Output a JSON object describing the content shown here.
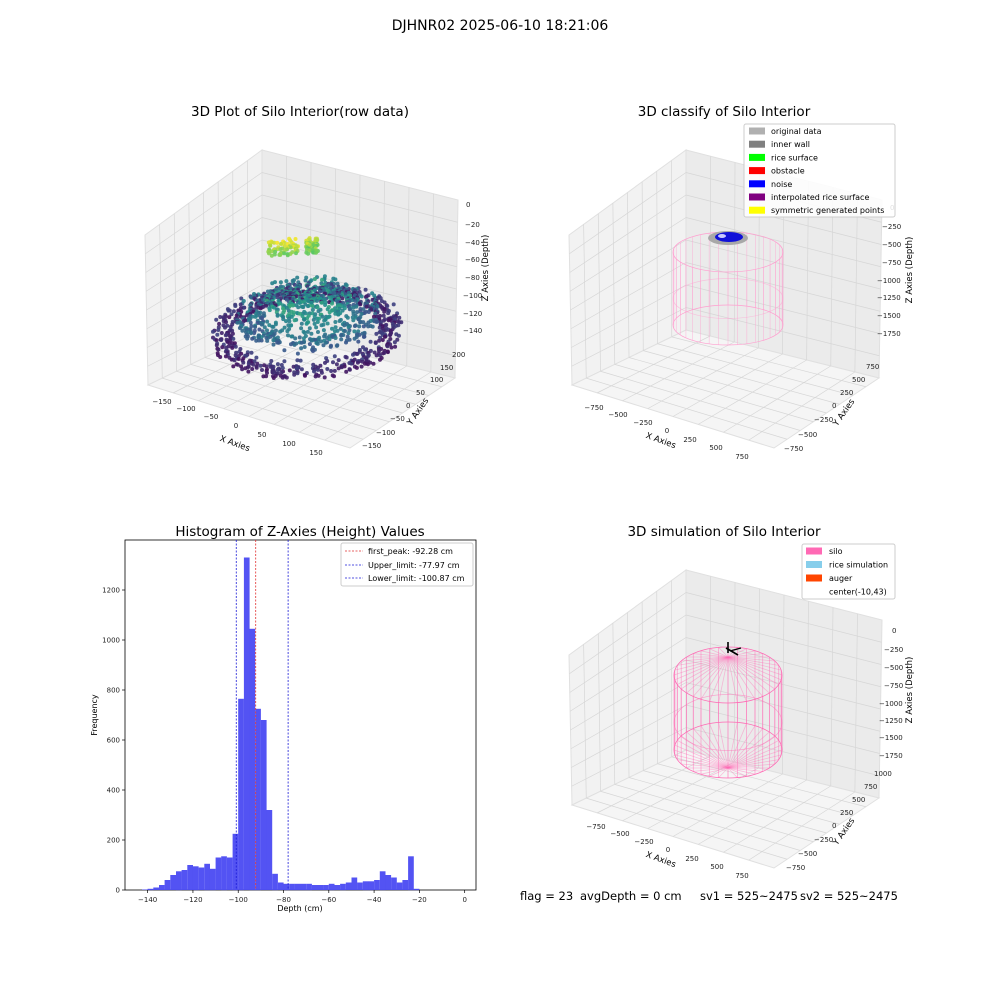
{
  "suptitle": "DJHNR02 2025-06-10 18:21:06",
  "footer": {
    "flag": "flag = 23",
    "avg_depth": "avgDepth = 0 cm",
    "sv1": "sv1 = 525~2475",
    "sv2": "sv2 = 525~2475"
  },
  "chart_data": [
    {
      "type": "scatter",
      "title": "3D Plot of Silo Interior(row data)",
      "xlabel": "X Axies",
      "ylabel": "Y Axies",
      "zlabel": "Z Axies (Depth)",
      "x_ticks": [
        "−150",
        "−100",
        "−50",
        "0",
        "50",
        "100",
        "150"
      ],
      "y_ticks": [
        "−150",
        "−100",
        "−50",
        "0",
        "50",
        "100",
        "150",
        "200"
      ],
      "z_ticks": [
        "0",
        "−20",
        "−40",
        "−60",
        "−80",
        "−100",
        "−120",
        "−140"
      ],
      "xlim": [
        -180,
        180
      ],
      "ylim": [
        -180,
        220
      ],
      "zlim": [
        -150,
        5
      ],
      "colormap": "viridis",
      "description_note": "dense point cloud; outer ring near depth -130, inner mound -95 to -85, peaks near -10"
    },
    {
      "type": "scatter",
      "title": "3D classify of Silo Interior",
      "xlabel": "X Axies",
      "ylabel": "Y Axies",
      "zlabel": "Z Axies (Depth)",
      "x_ticks": [
        "−750",
        "−500",
        "−250",
        "0",
        "250",
        "500",
        "750"
      ],
      "y_ticks": [
        "−750",
        "−500",
        "−250",
        "0",
        "250",
        "500",
        "750"
      ],
      "z_ticks": [
        "0",
        "−250",
        "−500",
        "−750",
        "−1000",
        "−1250",
        "−1500",
        "−1750"
      ],
      "legend": [
        {
          "label": "original data",
          "color": "#b0b0b0"
        },
        {
          "label": "inner wall",
          "color": "#808080"
        },
        {
          "label": "rice surface",
          "color": "#00ff00"
        },
        {
          "label": "obstacle",
          "color": "#ff0000"
        },
        {
          "label": "noise",
          "color": "#0000ff"
        },
        {
          "label": "interpolated rice surface",
          "color": "#800080"
        },
        {
          "label": "symmetric generated points",
          "color": "#ffff00"
        }
      ],
      "silo_color": "#ff9ecf"
    },
    {
      "type": "bar",
      "title": "Histogram of Z-Axies (Height) Values",
      "xlabel": "Depth (cm)",
      "ylabel": "Frequency",
      "xlim": [
        -150,
        5
      ],
      "ylim": [
        0,
        1400
      ],
      "x_ticks": [
        -140,
        -120,
        -100,
        -80,
        -60,
        -40,
        -20,
        0
      ],
      "y_ticks": [
        0,
        200,
        400,
        600,
        800,
        1000,
        1200
      ],
      "bin_width": 2.5,
      "bin_start": -142.5,
      "values": [
        2,
        5,
        10,
        20,
        40,
        60,
        75,
        80,
        100,
        95,
        90,
        105,
        85,
        130,
        135,
        130,
        225,
        765,
        1330,
        1045,
        725,
        680,
        320,
        65,
        30,
        25,
        25,
        25,
        25,
        25,
        20,
        20,
        20,
        25,
        20,
        25,
        30,
        50,
        30,
        35,
        35,
        40,
        75,
        60,
        50,
        30,
        40,
        135,
        5
      ],
      "bar_color": "#4a4af2",
      "vlines": [
        {
          "label": "first_peak: -92.28 cm",
          "x": -92.28,
          "color": "#e03030"
        },
        {
          "label": "Upper_limit: -77.97 cm",
          "x": -77.97,
          "color": "#1a1ad6"
        },
        {
          "label": "Lower_limit: -100.87 cm",
          "x": -100.87,
          "color": "#1a1ad6"
        }
      ]
    },
    {
      "type": "line",
      "title": "3D simulation of Silo Interior",
      "xlabel": "X Axies",
      "ylabel": "Y Axies",
      "zlabel": "Z Axies (Depth)",
      "x_ticks": [
        "−750",
        "−500",
        "−250",
        "0",
        "250",
        "500",
        "750"
      ],
      "y_ticks": [
        "−750",
        "−500",
        "−250",
        "0",
        "250",
        "500",
        "750",
        "1000"
      ],
      "z_ticks": [
        "0",
        "−250",
        "−500",
        "−750",
        "−1000",
        "−1250",
        "−1500",
        "−1750"
      ],
      "legend": [
        {
          "label": "silo",
          "color": "#ff69b4"
        },
        {
          "label": "rice simulation",
          "color": "#87ceeb"
        },
        {
          "label": "auger",
          "color": "#ff4500"
        },
        {
          "label": "center(-10,43)",
          "color": ""
        }
      ]
    }
  ]
}
